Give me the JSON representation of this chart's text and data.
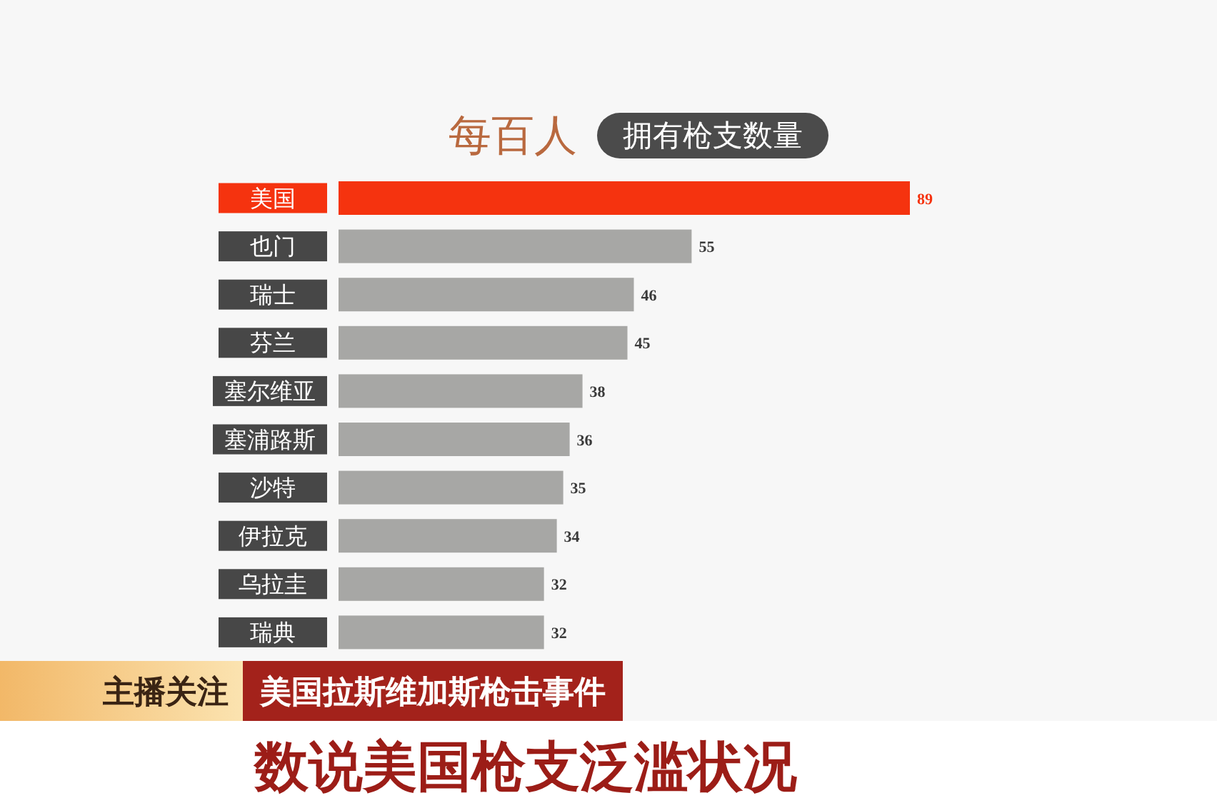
{
  "chart_data": {
    "type": "bar",
    "orientation": "horizontal",
    "title": "每百人",
    "subtitle": "拥有枪支数量",
    "categories": [
      "美国",
      "也门",
      "瑞士",
      "芬兰",
      "塞尔维亚",
      "塞浦路斯",
      "沙特",
      "伊拉克",
      "乌拉圭",
      "瑞典"
    ],
    "values": [
      89,
      55,
      46,
      45,
      38,
      36,
      35,
      34,
      32,
      32
    ],
    "colors": [
      "#f5330f",
      "#a7a7a5",
      "#a7a7a5",
      "#a7a7a5",
      "#a7a7a5",
      "#a7a7a5",
      "#a7a7a5",
      "#a7a7a5",
      "#a7a7a5",
      "#a7a7a5"
    ],
    "data_labels": true,
    "annotations": [
      "主播关注",
      "美国拉斯维加斯枪击事件",
      "数说美国枪支泛滥状况"
    ]
  }
}
